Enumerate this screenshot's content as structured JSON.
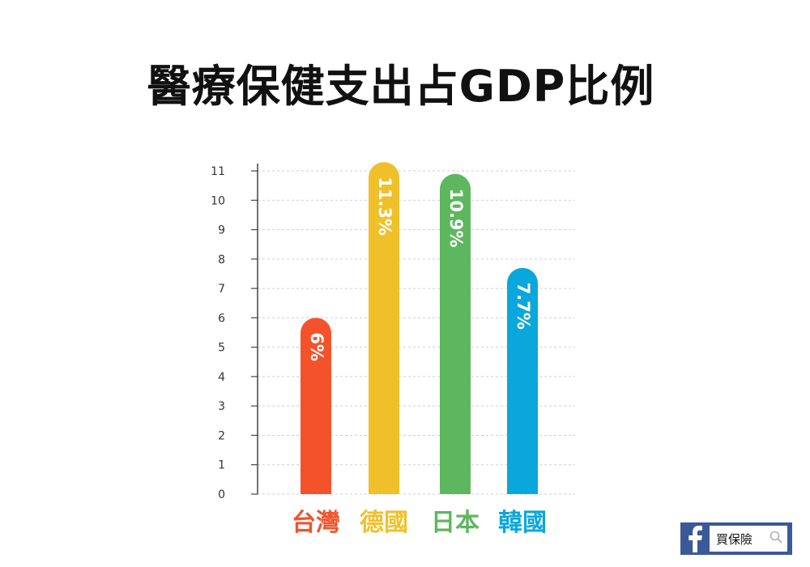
{
  "title": "醫療保健支出占GDP比例",
  "chart_data": {
    "type": "bar",
    "categories": [
      "台灣",
      "德國",
      "日本",
      "韓國"
    ],
    "values": [
      6,
      11.3,
      10.9,
      7.7
    ],
    "data_labels": [
      "6%",
      "11.3%",
      "10.9%",
      "7.7%"
    ],
    "bar_colors": [
      "#f4522b",
      "#f0c02a",
      "#5db75e",
      "#0aa7dc"
    ],
    "category_label_colors": [
      "#f4522b",
      "#f0c02a",
      "#5db75e",
      "#0aa7dc"
    ],
    "yticks": [
      0,
      1,
      2,
      3,
      4,
      5,
      6,
      7,
      8,
      9,
      10,
      11
    ],
    "ylim": [
      0,
      11
    ],
    "grid": "dashed horizontal",
    "title": "醫療保健支出占GDP比例",
    "xlabel": "",
    "ylabel": ""
  },
  "badge": {
    "brand_icon": "facebook-icon",
    "search_text": "買保險",
    "search_icon": "search-icon",
    "brand_color": "#3b5998"
  }
}
